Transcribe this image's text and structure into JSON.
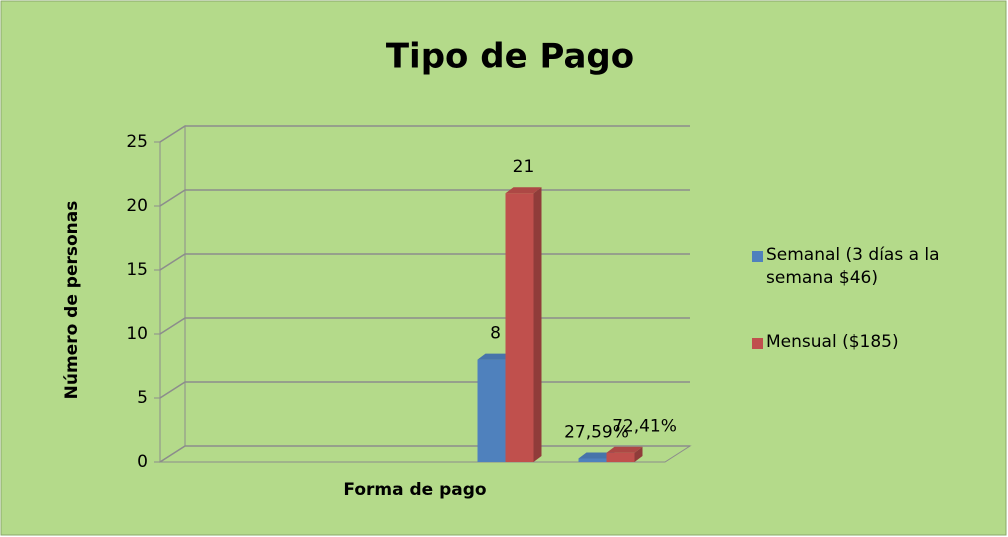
{
  "chart_data": {
    "type": "bar3d",
    "title": "Tipo de Pago",
    "x_label": "Forma de pago",
    "y_label": "Número de personas",
    "categories": [
      null,
      null,
      null,
      null,
      null
    ],
    "series": [
      {
        "name": "Semanal (3 días a la semana $46)",
        "color": "#4f81bd",
        "values": [
          null,
          null,
          null,
          8,
          0.2759
        ],
        "value_labels": [
          null,
          null,
          null,
          "8",
          "27,59%"
        ]
      },
      {
        "name": "Mensual ($185)",
        "color": "#c0504d",
        "values": [
          null,
          null,
          null,
          21,
          0.7241
        ],
        "value_labels": [
          null,
          null,
          null,
          "21",
          "72,41%"
        ]
      }
    ],
    "ylim": [
      0,
      25
    ],
    "yticks": [
      0,
      5,
      10,
      15,
      20,
      25
    ],
    "grid": true,
    "legend": "right"
  }
}
